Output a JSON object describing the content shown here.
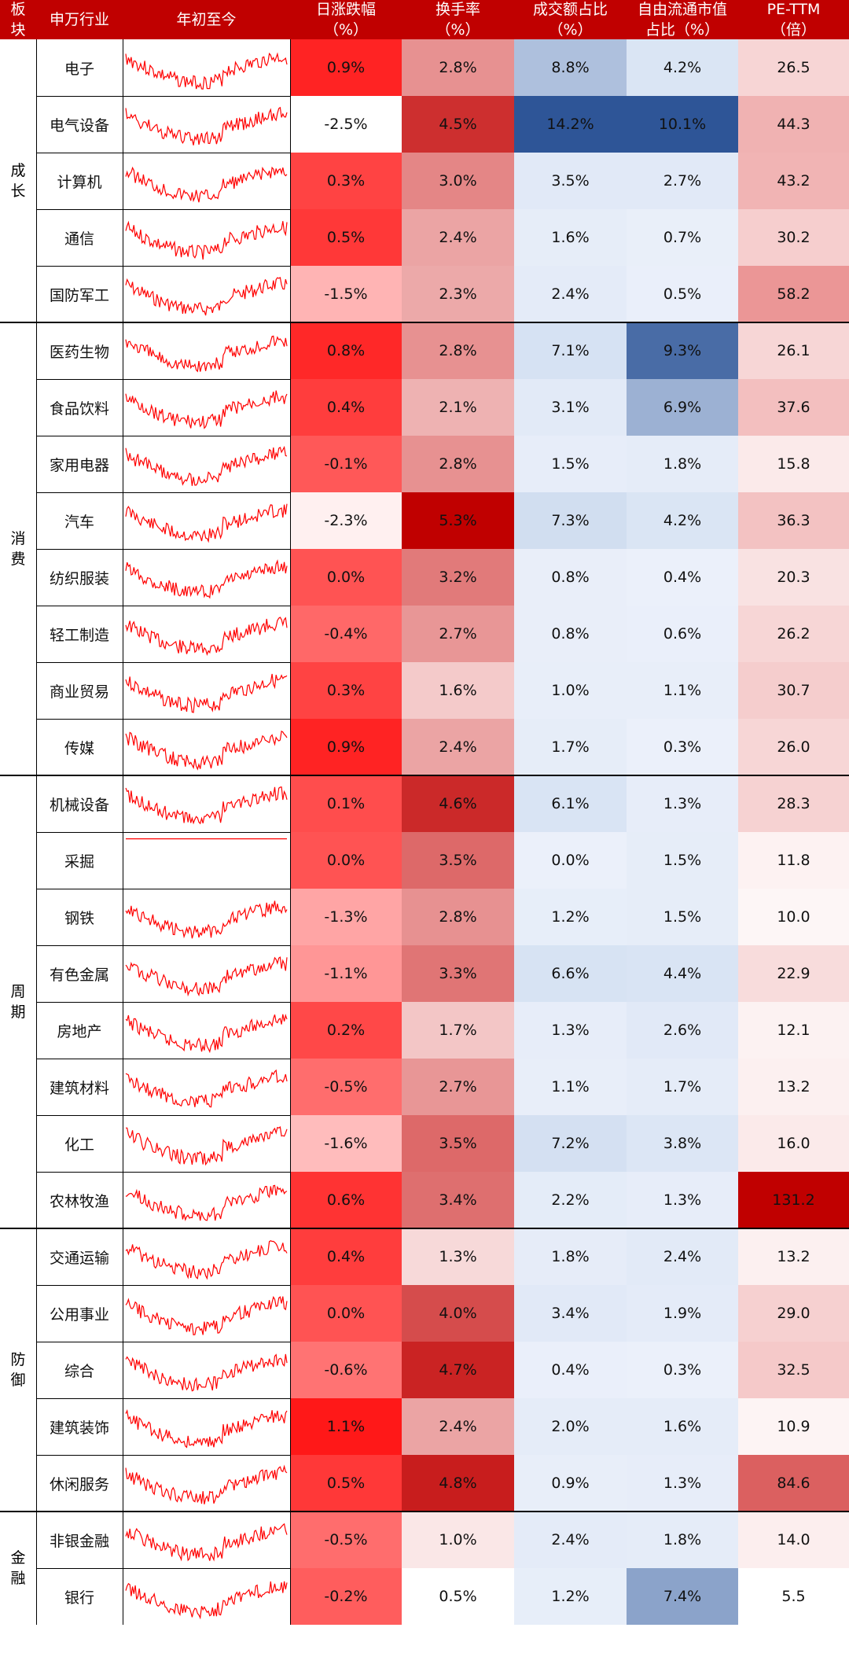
{
  "header": {
    "sector": "板\n块",
    "industry": "申万行业",
    "ytd": "年初至今",
    "daily_change": "日涨跌幅\n（%）",
    "turnover": "换手率\n（%）",
    "volume_share": "成交额占比\n（%）",
    "float_cap_share": "自由流通市值\n占比（%）",
    "pe_ttm": "PE-TTM\n（倍）"
  },
  "colors": {
    "header_bg": "#c00000",
    "spark_line": "#ff0000",
    "red_scale": [
      "#ffffff",
      "#c00000"
    ],
    "blue_scale": [
      "#e8eef8",
      "#2e5597"
    ]
  },
  "chart_data": {
    "type": "table",
    "groups": [
      {
        "label": "成\n长",
        "rows": 5
      },
      {
        "label": "消\n费",
        "rows": 8
      },
      {
        "label": "周\n期",
        "rows": 8
      },
      {
        "label": "防\n御",
        "rows": 5
      },
      {
        "label": "金\n融",
        "rows": 2
      }
    ],
    "rows": [
      {
        "industry": "电子",
        "daily_change": "0.9%",
        "turnover": "2.8%",
        "volume_share": "8.8%",
        "float_cap_share": "4.2%",
        "pe_ttm": "26.5"
      },
      {
        "industry": "电气设备",
        "daily_change": "-2.5%",
        "turnover": "4.5%",
        "volume_share": "14.2%",
        "float_cap_share": "10.1%",
        "pe_ttm": "44.3"
      },
      {
        "industry": "计算机",
        "daily_change": "0.3%",
        "turnover": "3.0%",
        "volume_share": "3.5%",
        "float_cap_share": "2.7%",
        "pe_ttm": "43.2"
      },
      {
        "industry": "通信",
        "daily_change": "0.5%",
        "turnover": "2.4%",
        "volume_share": "1.6%",
        "float_cap_share": "0.7%",
        "pe_ttm": "30.2"
      },
      {
        "industry": "国防军工",
        "daily_change": "-1.5%",
        "turnover": "2.3%",
        "volume_share": "2.4%",
        "float_cap_share": "0.5%",
        "pe_ttm": "58.2"
      },
      {
        "industry": "医药生物",
        "daily_change": "0.8%",
        "turnover": "2.8%",
        "volume_share": "7.1%",
        "float_cap_share": "9.3%",
        "pe_ttm": "26.1"
      },
      {
        "industry": "食品饮料",
        "daily_change": "0.4%",
        "turnover": "2.1%",
        "volume_share": "3.1%",
        "float_cap_share": "6.9%",
        "pe_ttm": "37.6"
      },
      {
        "industry": "家用电器",
        "daily_change": "-0.1%",
        "turnover": "2.8%",
        "volume_share": "1.5%",
        "float_cap_share": "1.8%",
        "pe_ttm": "15.8"
      },
      {
        "industry": "汽车",
        "daily_change": "-2.3%",
        "turnover": "5.3%",
        "volume_share": "7.3%",
        "float_cap_share": "4.2%",
        "pe_ttm": "36.3"
      },
      {
        "industry": "纺织服装",
        "daily_change": "0.0%",
        "turnover": "3.2%",
        "volume_share": "0.8%",
        "float_cap_share": "0.4%",
        "pe_ttm": "20.3"
      },
      {
        "industry": "轻工制造",
        "daily_change": "-0.4%",
        "turnover": "2.7%",
        "volume_share": "0.8%",
        "float_cap_share": "0.6%",
        "pe_ttm": "26.2"
      },
      {
        "industry": "商业贸易",
        "daily_change": "0.3%",
        "turnover": "1.6%",
        "volume_share": "1.0%",
        "float_cap_share": "1.1%",
        "pe_ttm": "30.7"
      },
      {
        "industry": "传媒",
        "daily_change": "0.9%",
        "turnover": "2.4%",
        "volume_share": "1.7%",
        "float_cap_share": "0.3%",
        "pe_ttm": "26.0"
      },
      {
        "industry": "机械设备",
        "daily_change": "0.1%",
        "turnover": "4.6%",
        "volume_share": "6.1%",
        "float_cap_share": "1.3%",
        "pe_ttm": "28.3"
      },
      {
        "industry": "采掘",
        "daily_change": "0.0%",
        "turnover": "3.5%",
        "volume_share": "0.0%",
        "float_cap_share": "1.5%",
        "pe_ttm": "11.8"
      },
      {
        "industry": "钢铁",
        "daily_change": "-1.3%",
        "turnover": "2.8%",
        "volume_share": "1.2%",
        "float_cap_share": "1.5%",
        "pe_ttm": "10.0"
      },
      {
        "industry": "有色金属",
        "daily_change": "-1.1%",
        "turnover": "3.3%",
        "volume_share": "6.6%",
        "float_cap_share": "4.4%",
        "pe_ttm": "22.9"
      },
      {
        "industry": "房地产",
        "daily_change": "0.2%",
        "turnover": "1.7%",
        "volume_share": "1.3%",
        "float_cap_share": "2.6%",
        "pe_ttm": "12.1"
      },
      {
        "industry": "建筑材料",
        "daily_change": "-0.5%",
        "turnover": "2.7%",
        "volume_share": "1.1%",
        "float_cap_share": "1.7%",
        "pe_ttm": "13.2"
      },
      {
        "industry": "化工",
        "daily_change": "-1.6%",
        "turnover": "3.5%",
        "volume_share": "7.2%",
        "float_cap_share": "3.8%",
        "pe_ttm": "16.0"
      },
      {
        "industry": "农林牧渔",
        "daily_change": "0.6%",
        "turnover": "3.4%",
        "volume_share": "2.2%",
        "float_cap_share": "1.3%",
        "pe_ttm": "131.2"
      },
      {
        "industry": "交通运输",
        "daily_change": "0.4%",
        "turnover": "1.3%",
        "volume_share": "1.8%",
        "float_cap_share": "2.4%",
        "pe_ttm": "13.2"
      },
      {
        "industry": "公用事业",
        "daily_change": "0.0%",
        "turnover": "4.0%",
        "volume_share": "3.4%",
        "float_cap_share": "1.9%",
        "pe_ttm": "29.0"
      },
      {
        "industry": "综合",
        "daily_change": "-0.6%",
        "turnover": "4.7%",
        "volume_share": "0.4%",
        "float_cap_share": "0.3%",
        "pe_ttm": "32.5"
      },
      {
        "industry": "建筑装饰",
        "daily_change": "1.1%",
        "turnover": "2.4%",
        "volume_share": "2.0%",
        "float_cap_share": "1.6%",
        "pe_ttm": "10.9"
      },
      {
        "industry": "休闲服务",
        "daily_change": "0.5%",
        "turnover": "4.8%",
        "volume_share": "0.9%",
        "float_cap_share": "1.3%",
        "pe_ttm": "84.6"
      },
      {
        "industry": "非银金融",
        "daily_change": "-0.5%",
        "turnover": "1.0%",
        "volume_share": "2.4%",
        "float_cap_share": "1.8%",
        "pe_ttm": "14.0"
      },
      {
        "industry": "银行",
        "daily_change": "-0.2%",
        "turnover": "0.5%",
        "volume_share": "1.2%",
        "float_cap_share": "7.4%",
        "pe_ttm": "5.5"
      }
    ]
  }
}
